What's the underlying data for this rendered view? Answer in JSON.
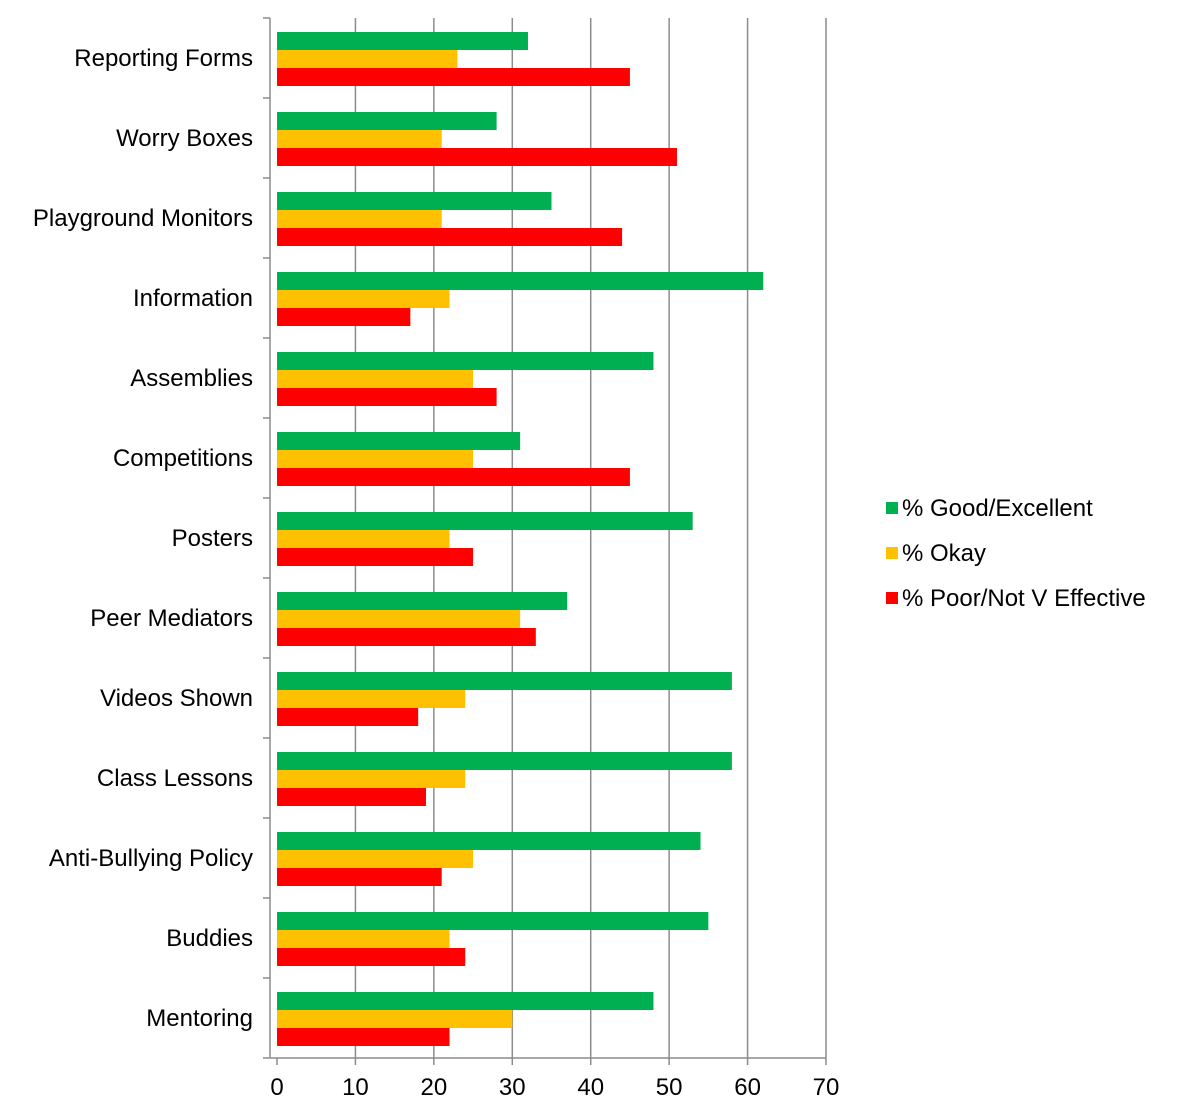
{
  "chart_data": {
    "type": "bar",
    "orientation": "horizontal",
    "categories": [
      "Reporting Forms",
      "Worry Boxes",
      "Playground Monitors",
      "Information",
      "Assemblies",
      "Competitions",
      "Posters",
      "Peer Mediators",
      "Videos Shown",
      "Class Lessons",
      "Anti-Bullying Policy",
      "Buddies",
      "Mentoring"
    ],
    "series": [
      {
        "name": "% Good/Excellent",
        "color": "#00b050",
        "values": [
          32,
          28,
          35,
          62,
          48,
          31,
          53,
          37,
          58,
          58,
          54,
          55,
          48
        ]
      },
      {
        "name": "% Okay",
        "color": "#ffc000",
        "values": [
          23,
          21,
          21,
          22,
          25,
          25,
          22,
          31,
          24,
          24,
          25,
          22,
          30
        ]
      },
      {
        "name": "% Poor/Not V Effective",
        "color": "#ff0000",
        "values": [
          45,
          51,
          44,
          17,
          28,
          45,
          25,
          33,
          18,
          19,
          21,
          24,
          22
        ]
      }
    ],
    "xlim": [
      0,
      70
    ],
    "xticks": [
      "0",
      "10",
      "20",
      "30",
      "40",
      "50",
      "60",
      "70"
    ],
    "title": "",
    "xlabel": "",
    "ylabel": "",
    "grid": true,
    "legend_position": "right"
  }
}
